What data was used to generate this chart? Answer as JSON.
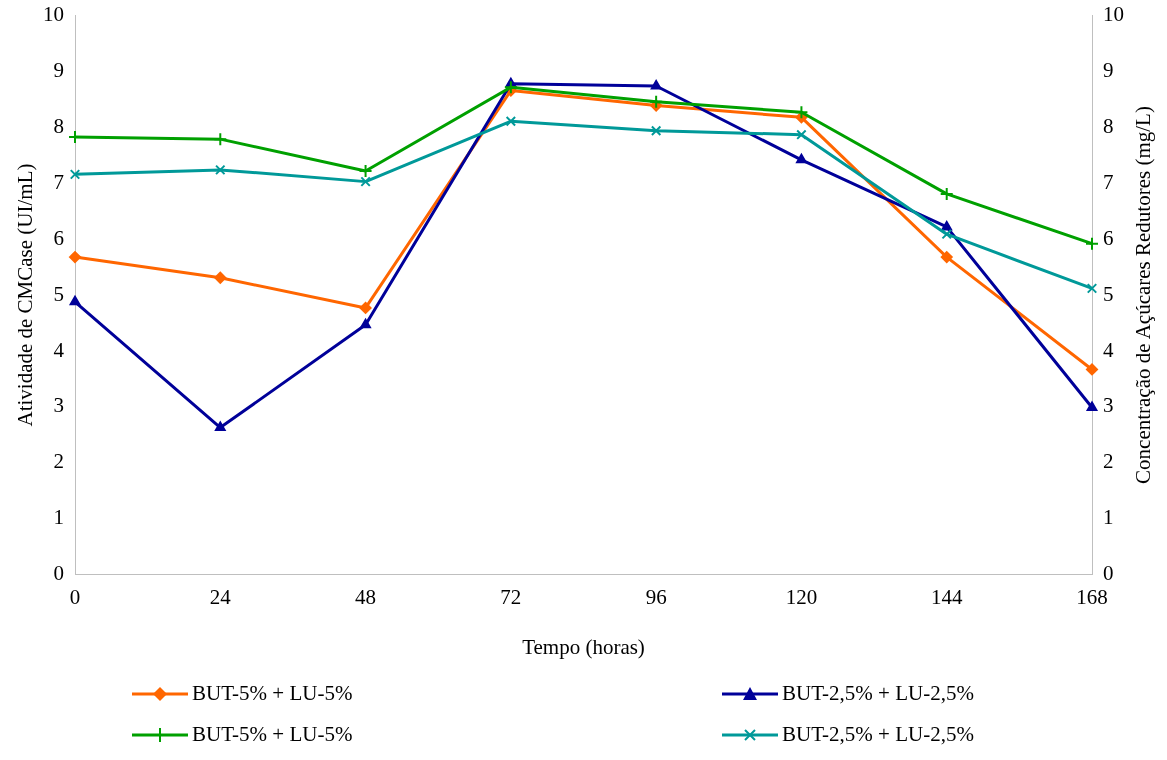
{
  "chart_data": {
    "type": "line",
    "xlabel": "Tempo (horas)",
    "ylabel": "Atividade de CMCase (UI/mL)",
    "y2label": "Concentração de Açúcares Redutores (mg/L)",
    "x": [
      0,
      24,
      48,
      72,
      96,
      120,
      144,
      168
    ],
    "xlim": [
      0,
      168
    ],
    "xticks": [
      0,
      24,
      48,
      72,
      96,
      120,
      144,
      168
    ],
    "ylim": [
      0,
      10
    ],
    "yticks": [
      0,
      1,
      2,
      3,
      4,
      5,
      6,
      7,
      8,
      9,
      10
    ],
    "y2lim": [
      0,
      10
    ],
    "y2ticks": [
      0,
      1,
      2,
      3,
      4,
      5,
      6,
      7,
      8,
      9,
      10
    ],
    "grid": false,
    "legend": "bottom",
    "line_style": "solid",
    "series": [
      {
        "name": "BUT-5% + LU-5%",
        "color": "#ff6600",
        "marker": "diamond",
        "values": [
          5.68,
          5.31,
          4.77,
          8.66,
          8.39,
          8.18,
          5.68,
          3.67
        ]
      },
      {
        "name": "BUT-2,5% + LU-2,5%",
        "color": "#000099",
        "marker": "triangle",
        "values": [
          4.88,
          2.63,
          4.47,
          8.78,
          8.74,
          7.42,
          6.22,
          2.99
        ]
      },
      {
        "name": "BUT-5% + LU-5%",
        "color": "#00a000",
        "marker": "cross",
        "axis": "y2",
        "values": [
          7.83,
          7.79,
          7.22,
          8.72,
          8.46,
          8.27,
          6.81,
          5.92
        ]
      },
      {
        "name": "BUT-2,5% + LU-2,5%",
        "color": "#009999",
        "marker": "cross",
        "axis": "y2",
        "values": [
          7.16,
          7.24,
          7.03,
          8.11,
          7.94,
          7.87,
          6.09,
          5.12
        ]
      }
    ]
  }
}
